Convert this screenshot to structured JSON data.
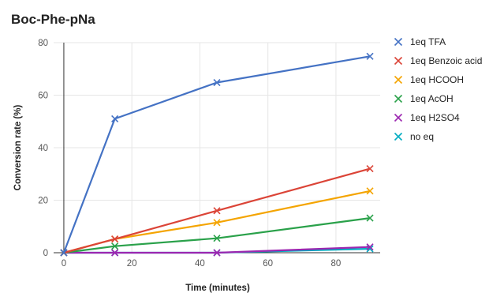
{
  "chart_data": {
    "type": "line",
    "title": "Boc-Phe-pNa",
    "xlabel": "Time (minutes)",
    "ylabel": "Conversion rate (%)",
    "xlim": [
      -3,
      93
    ],
    "ylim": [
      0,
      80
    ],
    "x_ticks": [
      0,
      20,
      40,
      60,
      80
    ],
    "y_ticks": [
      0,
      20,
      40,
      60,
      80
    ],
    "grid": true,
    "legend_position": "right",
    "x": [
      0,
      15,
      45,
      90
    ],
    "series": [
      {
        "name": "1eq TFA",
        "color": "#4472c4",
        "values": [
          0,
          51,
          64.8,
          74.8
        ]
      },
      {
        "name": "1eq Benzoic acid",
        "color": "#db4437",
        "values": [
          0,
          5.2,
          16,
          32
        ]
      },
      {
        "name": "1eq HCOOH",
        "color": "#f4a400",
        "values": [
          0,
          5.2,
          11.5,
          23.5
        ]
      },
      {
        "name": "1eq AcOH",
        "color": "#2aa14a",
        "values": [
          0,
          2.5,
          5.5,
          13.2
        ]
      },
      {
        "name": "1eq H2SO4",
        "color": "#9c27b0",
        "values": [
          0,
          0,
          0,
          2.2
        ]
      },
      {
        "name": "no eq",
        "color": "#00acc1",
        "values": [
          0,
          0,
          0,
          1.5
        ]
      }
    ]
  }
}
